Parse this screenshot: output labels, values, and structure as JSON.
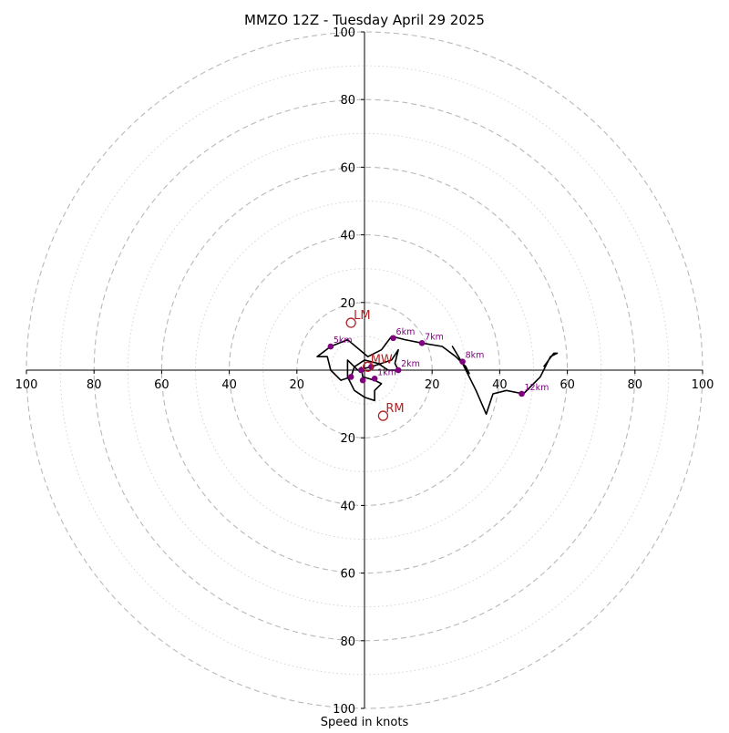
{
  "chart_data": {
    "type": "scatter",
    "title": "MMZO 12Z - Tuesday April 29 2025",
    "xlabel": "Speed in knots",
    "ylabel": "",
    "xlim": [
      -100,
      100
    ],
    "ylim": [
      -100,
      100
    ],
    "rings_major": [
      20,
      40,
      60,
      80,
      100
    ],
    "rings_minor": [
      10,
      30,
      50,
      70,
      90
    ],
    "x_ticks": [
      -100,
      -80,
      -60,
      -40,
      -20,
      20,
      40,
      60,
      80,
      100
    ],
    "x_tick_labels": [
      "100",
      "80",
      "60",
      "40",
      "20",
      "20",
      "40",
      "60",
      "80",
      "100"
    ],
    "y_ticks": [
      100,
      80,
      60,
      40,
      20,
      -20,
      -40,
      -60,
      -80,
      -100
    ],
    "y_tick_labels": [
      "100",
      "80",
      "60",
      "40",
      "20",
      "20",
      "40",
      "60",
      "80",
      "100"
    ],
    "grid": true,
    "colors": {
      "line": "#000000",
      "height_points": "#800080",
      "storm_markers": "#b22222",
      "major_rings": "#b8b8b8",
      "minor_rings": "#d0d0d0"
    },
    "series": [
      {
        "type": "line",
        "points": [
          {
            "u": -1,
            "v": 1
          },
          {
            "u": -0.5,
            "v": -2
          },
          {
            "u": 3,
            "v": -3
          },
          {
            "u": 5,
            "v": -4
          },
          {
            "u": 3,
            "v": -6
          },
          {
            "u": 3,
            "v": -9
          },
          {
            "u": 0,
            "v": -8
          },
          {
            "u": -3,
            "v": -6
          },
          {
            "u": -5,
            "v": -2
          },
          {
            "u": -5,
            "v": 3
          },
          {
            "u": -2,
            "v": 0
          },
          {
            "u": 2,
            "v": 1
          },
          {
            "u": 5,
            "v": 2
          },
          {
            "u": 8,
            "v": 3
          },
          {
            "u": 10,
            "v": 6
          },
          {
            "u": 9,
            "v": 2
          },
          {
            "u": 10,
            "v": 0
          },
          {
            "u": 7,
            "v": 0
          },
          {
            "u": 4,
            "v": 2
          },
          {
            "u": 0,
            "v": 3
          },
          {
            "u": -3,
            "v": 1
          },
          {
            "u": -4,
            "v": -2
          },
          {
            "u": -7,
            "v": -3
          },
          {
            "u": -10,
            "v": 0
          },
          {
            "u": -11,
            "v": 4
          },
          {
            "u": -14,
            "v": 4
          },
          {
            "u": -10,
            "v": 7
          },
          {
            "u": -5,
            "v": 9
          },
          {
            "u": 1,
            "v": 4
          },
          {
            "u": 5,
            "v": 6
          },
          {
            "u": 8,
            "v": 10
          },
          {
            "u": 12,
            "v": 9
          },
          {
            "u": 17,
            "v": 8
          },
          {
            "u": 23,
            "v": 7
          },
          {
            "u": 27,
            "v": 4
          },
          {
            "u": 30,
            "v": 1
          },
          {
            "u": 31,
            "v": -1
          },
          {
            "u": 29,
            "v": 2
          },
          {
            "u": 26,
            "v": 7
          },
          {
            "u": 29,
            "v": 2
          },
          {
            "u": 33,
            "v": -6
          },
          {
            "u": 36,
            "v": -13
          },
          {
            "u": 38,
            "v": -7
          },
          {
            "u": 42,
            "v": -6
          },
          {
            "u": 47,
            "v": -7
          },
          {
            "u": 52,
            "v": -2
          },
          {
            "u": 55,
            "v": 4
          },
          {
            "u": 57,
            "v": 5
          },
          {
            "u": 56,
            "v": 5
          },
          {
            "u": 53,
            "v": 1
          }
        ]
      }
    ],
    "height_points": [
      {
        "label": "",
        "u": -1,
        "v": 0
      },
      {
        "label": "1km",
        "u": 3,
        "v": -2.5
      },
      {
        "label": "",
        "u": -0.5,
        "v": -3
      },
      {
        "label": "",
        "u": -4,
        "v": -2
      },
      {
        "label": "2km",
        "u": 10,
        "v": 0
      },
      {
        "label": "",
        "u": 2,
        "v": 1
      },
      {
        "label": "5km",
        "u": -10,
        "v": 7
      },
      {
        "label": "6km",
        "u": 8.5,
        "v": 9.5
      },
      {
        "label": "7km",
        "u": 17,
        "v": 8
      },
      {
        "label": "8km",
        "u": 29,
        "v": 2.5
      },
      {
        "label": "12km",
        "u": 46.5,
        "v": -7
      }
    ],
    "storm_markers": [
      {
        "label": "LM",
        "u": -4,
        "v": 14
      },
      {
        "label": "MW",
        "u": 1,
        "v": 1
      },
      {
        "label": "RM",
        "u": 5.5,
        "v": -13.5
      }
    ]
  }
}
